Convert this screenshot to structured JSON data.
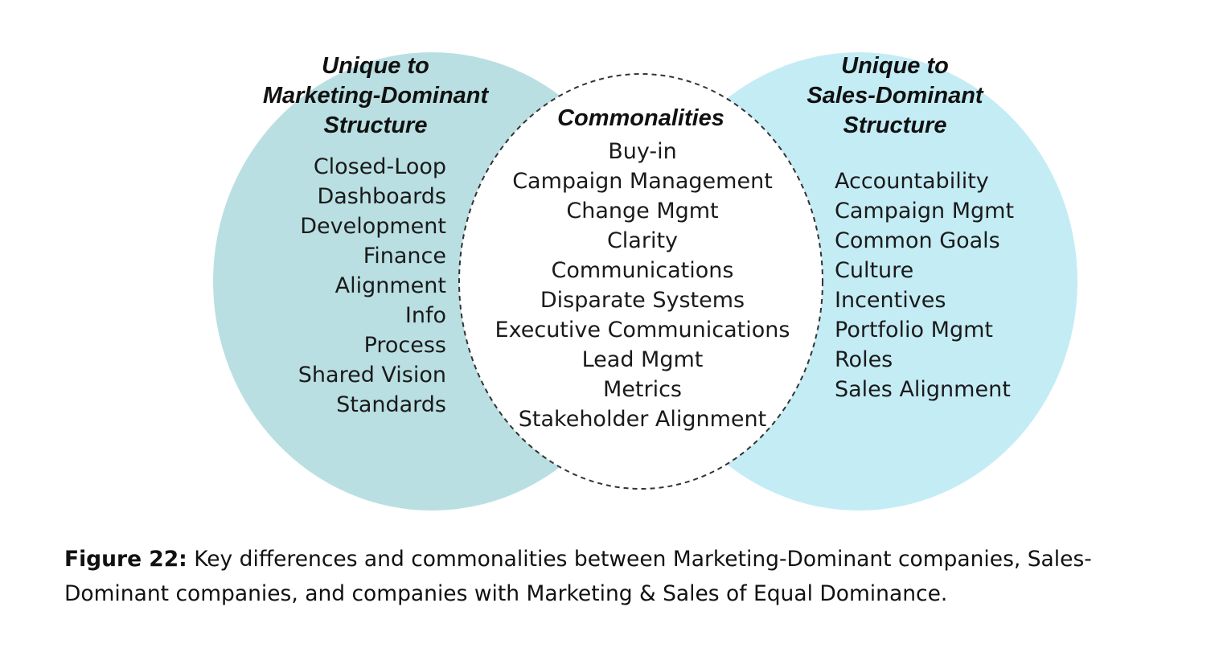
{
  "diagram": {
    "left": {
      "heading": [
        "Unique to",
        "Marketing-Dominant",
        "Structure"
      ],
      "items": [
        "Closed-Loop",
        "Dashboards",
        "Development",
        "Finance",
        "Alignment",
        "Info",
        "Process",
        "Shared Vision",
        "Standards"
      ],
      "color": "#b9dfe2"
    },
    "right": {
      "heading": [
        "Unique to",
        "Sales-Dominant",
        "Structure"
      ],
      "items": [
        "Accountability",
        "Campaign Mgmt",
        "Common Goals",
        "Culture",
        "Incentives",
        "Portfolio Mgmt",
        "Roles",
        "Sales Alignment"
      ],
      "color": "#c4ecf5"
    },
    "center": {
      "heading": "Commonalities",
      "items": [
        "Buy-in",
        "Campaign Management",
        "Change Mgmt",
        "Clarity",
        "Communications",
        "Disparate Systems",
        "Executive Communications",
        "Lead Mgmt",
        "Metrics",
        "Stakeholder Alignment"
      ],
      "fill": "#ffffff",
      "border": "#333333"
    }
  },
  "caption": {
    "label": "Figure 22:",
    "text": " Key differences and commonalities between Marketing-Dominant companies, Sales-Dominant companies, and companies with Marketing & Sales of Equal Dominance."
  }
}
